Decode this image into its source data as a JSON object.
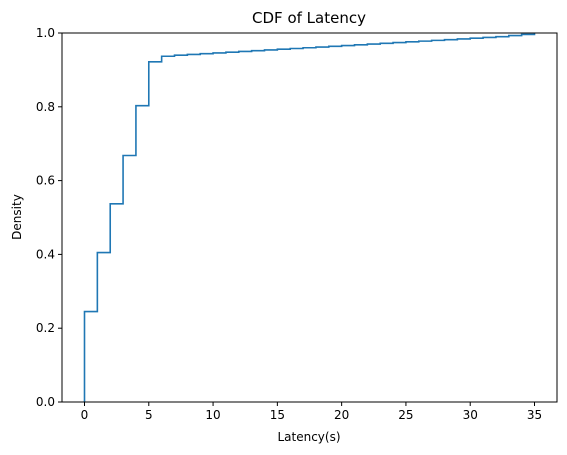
{
  "chart_data": {
    "type": "line",
    "step": true,
    "title": "CDF of Latency",
    "xlabel": "Latency(s)",
    "ylabel": "Density",
    "xlim": [
      -1.75,
      36.75
    ],
    "ylim": [
      0,
      1.0
    ],
    "xticks": [
      0,
      5,
      10,
      15,
      20,
      25,
      30,
      35
    ],
    "yticks": [
      0.0,
      0.2,
      0.4,
      0.6,
      0.8,
      1.0
    ],
    "xtick_labels": [
      "0",
      "5",
      "10",
      "15",
      "20",
      "25",
      "30",
      "35"
    ],
    "ytick_labels": [
      "0.0",
      "0.2",
      "0.4",
      "0.6",
      "0.8",
      "1.0"
    ],
    "grid": false,
    "series": [
      {
        "color": "#1f77b4",
        "x": [
          0,
          0,
          1,
          2,
          3,
          4,
          5,
          6,
          7,
          8,
          9,
          10,
          11,
          12,
          13,
          14,
          15,
          16,
          17,
          18,
          19,
          20,
          21,
          22,
          23,
          24,
          25,
          26,
          27,
          28,
          29,
          30,
          31,
          32,
          33,
          34,
          35
        ],
        "y": [
          0.0,
          0.245,
          0.405,
          0.537,
          0.668,
          0.803,
          0.922,
          0.937,
          0.94,
          0.942,
          0.944,
          0.946,
          0.948,
          0.95,
          0.952,
          0.954,
          0.956,
          0.958,
          0.96,
          0.962,
          0.964,
          0.966,
          0.968,
          0.97,
          0.972,
          0.974,
          0.976,
          0.978,
          0.98,
          0.982,
          0.984,
          0.986,
          0.988,
          0.99,
          0.993,
          0.996,
          1.0
        ]
      }
    ]
  }
}
